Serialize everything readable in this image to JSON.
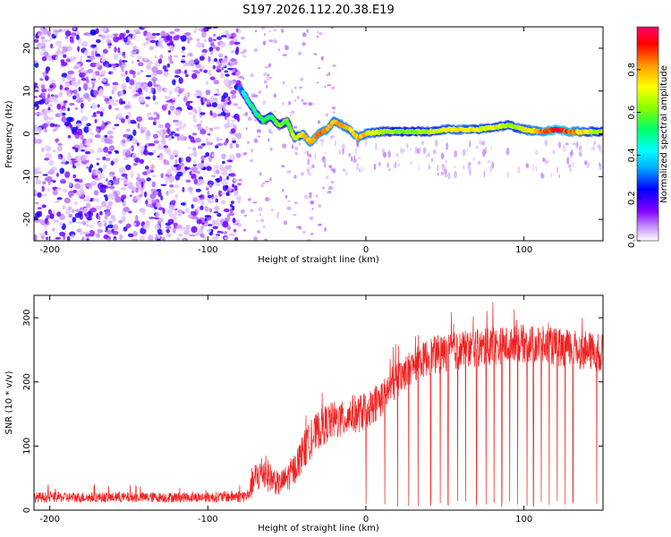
{
  "title": "S197.2026.112.20.38.E19",
  "chart_data": [
    {
      "type": "heatmap",
      "xlabel": "Height of straight line (km)",
      "ylabel": "Frequency (Hz)",
      "xlim": [
        -210,
        150
      ],
      "ylim": [
        -25,
        25
      ],
      "xticks": [
        -200,
        -100,
        0,
        100
      ],
      "yticks": [
        -20,
        -10,
        0,
        10,
        20
      ],
      "noise_region_x": [
        -210,
        -80
      ],
      "signal_track": {
        "x": [
          -80,
          -75,
          -70,
          -65,
          -60,
          -55,
          -50,
          -45,
          -40,
          -35,
          -30,
          -25,
          -20,
          -15,
          -10,
          -5,
          0,
          10,
          20,
          30,
          40,
          50,
          60,
          70,
          80,
          90,
          100,
          110,
          120,
          130,
          140,
          150
        ],
        "freq": [
          11,
          8,
          5,
          3,
          4,
          2,
          3,
          -1,
          0,
          -2,
          0,
          1,
          3,
          2,
          1,
          -1,
          0,
          0.5,
          0.5,
          0.5,
          0.5,
          1,
          1,
          1,
          1.5,
          2,
          1,
          0.5,
          1,
          0.5,
          0.5,
          0.5
        ],
        "amplitude": [
          0.3,
          0.45,
          0.5,
          0.55,
          0.55,
          0.6,
          0.6,
          0.65,
          0.75,
          0.8,
          0.85,
          0.8,
          0.75,
          0.8,
          0.75,
          0.8,
          0.75,
          0.65,
          0.6,
          0.6,
          0.65,
          0.7,
          0.75,
          0.7,
          0.7,
          0.65,
          0.7,
          0.8,
          0.95,
          0.85,
          0.7,
          0.6
        ]
      },
      "colorbar": {
        "label": "Normalized spectral amplitude",
        "ticks": [
          "0.0",
          "0.2",
          "0.4",
          "0.6",
          "0.8"
        ],
        "tick_values": [
          0,
          0.2,
          0.4,
          0.6,
          0.8
        ],
        "range": [
          0,
          1
        ]
      }
    },
    {
      "type": "line",
      "xlabel": "Height of straight line (km)",
      "ylabel": "SNR (10 * v/v)",
      "xlim": [
        -210,
        150
      ],
      "ylim": [
        0,
        335
      ],
      "xticks": [
        -200,
        -100,
        0,
        100
      ],
      "yticks": [
        0,
        100,
        200,
        300
      ],
      "color": "#ee2222",
      "envelope": {
        "x": [
          -210,
          -150,
          -100,
          -75,
          -70,
          -65,
          -60,
          -55,
          -50,
          -45,
          -40,
          -35,
          -30,
          -25,
          -20,
          -15,
          -10,
          -5,
          0,
          10,
          20,
          30,
          40,
          60,
          80,
          100,
          120,
          150
        ],
        "y": [
          20,
          20,
          20,
          22,
          50,
          60,
          50,
          40,
          50,
          65,
          90,
          110,
          125,
          135,
          140,
          140,
          150,
          150,
          155,
          175,
          205,
          225,
          240,
          250,
          255,
          260,
          255,
          245
        ],
        "noise": [
          8,
          8,
          8,
          10,
          25,
          30,
          22,
          18,
          22,
          25,
          30,
          30,
          30,
          30,
          30,
          30,
          30,
          30,
          30,
          30,
          30,
          25,
          30,
          30,
          30,
          30,
          30,
          30
        ]
      },
      "dropouts_x": [
        0,
        12,
        20,
        27,
        33,
        41,
        47,
        52,
        58,
        63,
        70,
        76,
        81,
        86,
        91,
        96,
        102,
        106,
        111,
        116,
        121,
        126,
        131,
        146
      ]
    }
  ]
}
